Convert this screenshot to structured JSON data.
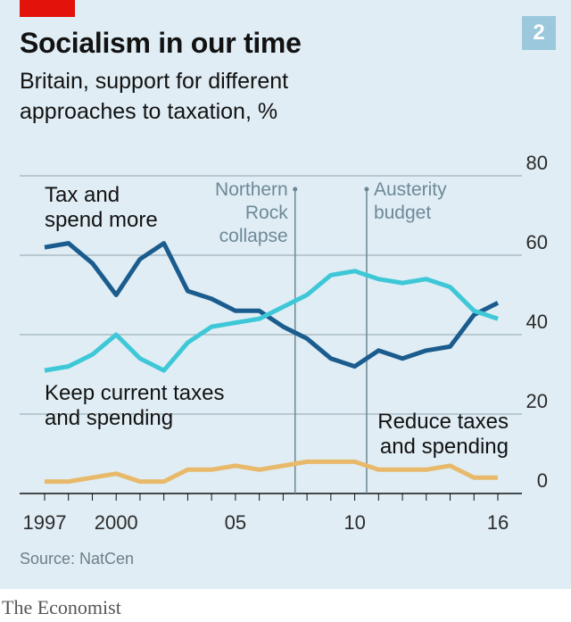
{
  "header": {
    "title": "Socialism in our time",
    "subtitle": "Britain, support for different approaches to taxation, %",
    "chart_number": "2"
  },
  "footer": {
    "source": "Source: NatCen",
    "brand": "The Economist"
  },
  "colors": {
    "background": "#e0edf4",
    "tag_red": "#e3120b",
    "tax_and_spend_more": "#1b5c8e",
    "keep_current": "#3ec8d7",
    "reduce": "#e8b96a",
    "grid": "#8fa4ae",
    "event_line": "#6b8795"
  },
  "chart_data": {
    "type": "line",
    "title": "Socialism in our time",
    "subtitle": "Britain, support for different approaches to taxation, %",
    "xlabel": "",
    "ylabel": "",
    "x_ticks": [
      {
        "value": 1997,
        "label": "1997"
      },
      {
        "value": 2000,
        "label": "2000"
      },
      {
        "value": 2005,
        "label": "05"
      },
      {
        "value": 2010,
        "label": "10"
      },
      {
        "value": 2016,
        "label": "16"
      }
    ],
    "y_ticks": [
      0,
      20,
      40,
      60,
      80
    ],
    "xlim": [
      1996.5,
      2017
    ],
    "ylim": [
      0,
      80
    ],
    "grid": "horizontal",
    "y_axis_side": "right",
    "legend": "direct labels",
    "x": [
      1997,
      1998,
      1999,
      2000,
      2001,
      2002,
      2003,
      2004,
      2005,
      2006,
      2007,
      2008,
      2009,
      2010,
      2011,
      2012,
      2013,
      2014,
      2015,
      2016
    ],
    "series": [
      {
        "name": "Tax and spend more",
        "label_lines": [
          "Tax and",
          "spend more"
        ],
        "color_key": "tax_and_spend_more",
        "values": [
          62,
          63,
          58,
          50,
          59,
          63,
          51,
          49,
          46,
          46,
          42,
          39,
          34,
          32,
          36,
          34,
          36,
          37,
          45,
          48
        ]
      },
      {
        "name": "Keep current taxes and spending",
        "label_lines": [
          "Keep current taxes",
          "and spending"
        ],
        "color_key": "keep_current",
        "values": [
          31,
          32,
          35,
          40,
          34,
          31,
          38,
          42,
          43,
          44,
          47,
          50,
          55,
          56,
          54,
          53,
          54,
          52,
          46,
          44
        ]
      },
      {
        "name": "Reduce taxes and spending",
        "label_lines": [
          "Reduce taxes",
          "and spending"
        ],
        "color_key": "reduce",
        "values": [
          3,
          3,
          4,
          5,
          3,
          3,
          6,
          6,
          7,
          6,
          7,
          8,
          8,
          8,
          6,
          6,
          6,
          7,
          4,
          4
        ]
      }
    ],
    "annotations": [
      {
        "x": 2007.5,
        "label_lines": [
          "Northern",
          "Rock",
          "collapse"
        ],
        "side": "left"
      },
      {
        "x": 2010.5,
        "label_lines": [
          "Austerity",
          "budget"
        ],
        "side": "right"
      }
    ]
  }
}
